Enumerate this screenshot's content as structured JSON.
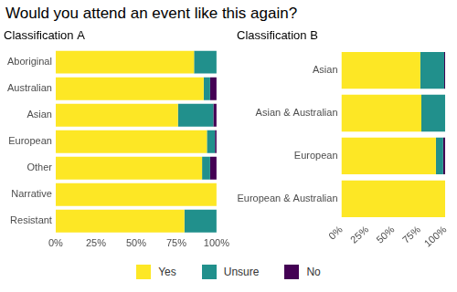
{
  "title": "Would you attend an event like this again?",
  "chart_data": [
    {
      "type": "bar",
      "title": "Classification A",
      "orientation": "horizontal",
      "stacked": true,
      "grid": false,
      "legend": "bottom",
      "categories": [
        "Aboriginal",
        "Australian",
        "Asian",
        "European",
        "Other",
        "Narrative",
        "Resistant"
      ],
      "series": [
        {
          "name": "Yes",
          "color": "#FDE725",
          "values": [
            86,
            92,
            76,
            94,
            91,
            100,
            80
          ]
        },
        {
          "name": "Unsure",
          "color": "#21908C",
          "values": [
            14,
            4,
            22,
            5,
            5,
            0,
            20
          ]
        },
        {
          "name": "No",
          "color": "#440154",
          "values": [
            0,
            4,
            2,
            1,
            4,
            0,
            0
          ]
        }
      ],
      "xlim": [
        0,
        100
      ],
      "xticks": [
        {
          "value": 0,
          "label": "0%"
        },
        {
          "value": 25,
          "label": "25%"
        },
        {
          "value": 50,
          "label": "50%"
        },
        {
          "value": 75,
          "label": "75%"
        },
        {
          "value": 100,
          "label": "100%"
        }
      ]
    },
    {
      "type": "bar",
      "title": "Classification B",
      "orientation": "horizontal",
      "stacked": true,
      "grid": false,
      "categories": [
        "Asian",
        "Asian & Australian",
        "European",
        "European & Australian"
      ],
      "series": [
        {
          "name": "Yes",
          "color": "#FDE725",
          "values": [
            76,
            77,
            91,
            100
          ]
        },
        {
          "name": "Unsure",
          "color": "#21908C",
          "values": [
            23,
            23,
            7,
            0
          ]
        },
        {
          "name": "No",
          "color": "#440154",
          "values": [
            1,
            0,
            2,
            0
          ]
        }
      ],
      "xlim": [
        0,
        100
      ],
      "xticks": [
        {
          "value": 0,
          "label": "0%"
        },
        {
          "value": 25,
          "label": "25%"
        },
        {
          "value": 50,
          "label": "50%"
        },
        {
          "value": 75,
          "label": "75%"
        },
        {
          "value": 100,
          "label": "100%"
        }
      ]
    }
  ]
}
